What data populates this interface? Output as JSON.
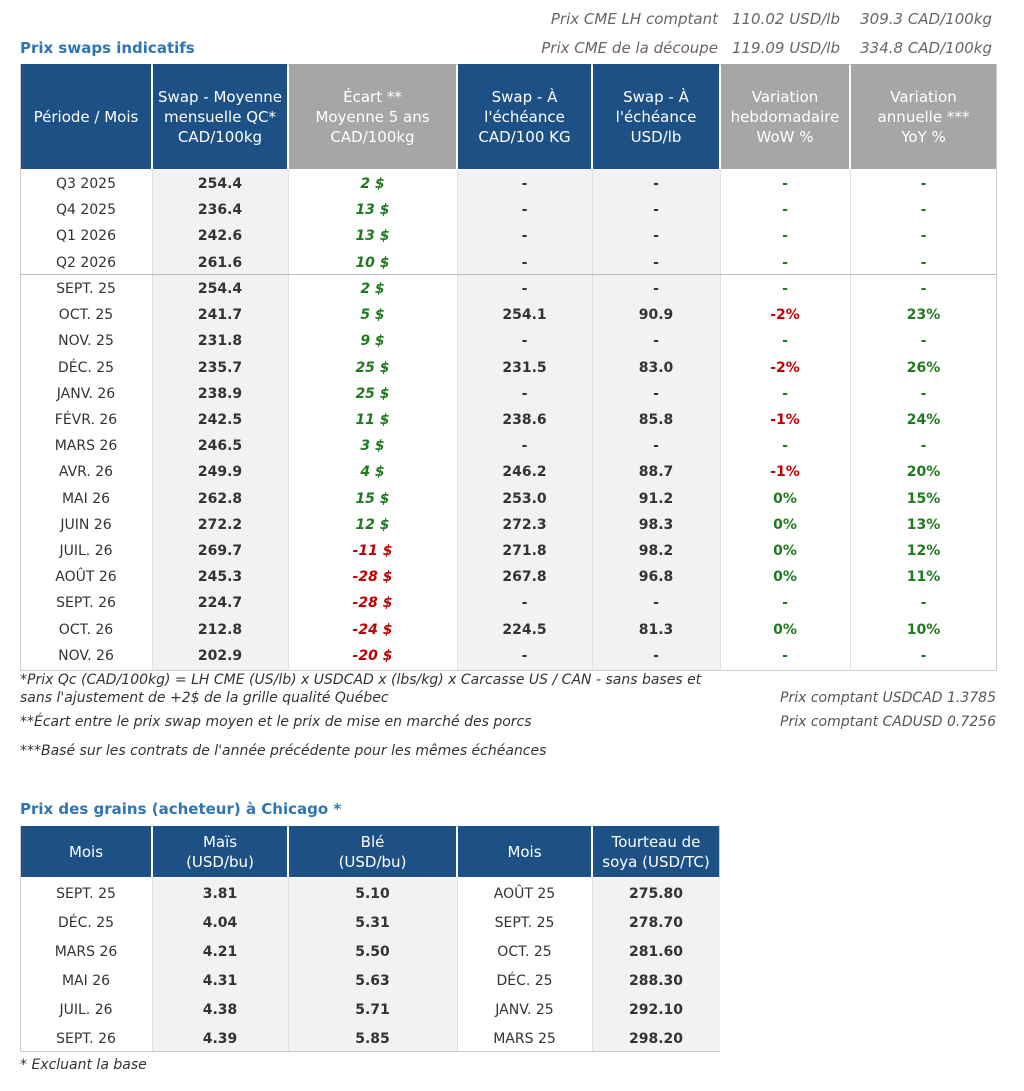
{
  "spot_prices": [
    {
      "label": "Prix CME LH comptant",
      "usd": "110.02 USD/lb",
      "cad": "309.3 CAD/100kg"
    },
    {
      "label": "Prix CME de la découpe",
      "usd": "119.09 USD/lb",
      "cad": "334.8 CAD/100kg"
    }
  ],
  "swaps": {
    "title": "Prix swaps indicatifs",
    "headers": [
      [
        "Période / Mois"
      ],
      [
        "Swap - Moyenne",
        "mensuelle QC*",
        "CAD/100kg"
      ],
      [
        "Écart **",
        "Moyenne 5 ans",
        "CAD/100kg"
      ],
      [
        "Swap - À",
        "l'échéance",
        "CAD/100 KG"
      ],
      [
        "Swap - À",
        "l'échéance",
        "USD/lb"
      ],
      [
        "Variation",
        "hebdomadaire",
        "WoW %"
      ],
      [
        "Variation",
        "annuelle ***",
        "YoY %"
      ]
    ],
    "quarters": [
      [
        "Q3 2025",
        "254.4",
        "2 $",
        "-",
        "-",
        "-",
        "-"
      ],
      [
        "Q4 2025",
        "236.4",
        "13 $",
        "-",
        "-",
        "-",
        "-"
      ],
      [
        "Q1 2026",
        "242.6",
        "13 $",
        "-",
        "-",
        "-",
        "-"
      ],
      [
        "Q2 2026",
        "261.6",
        "10 $",
        "-",
        "-",
        "-",
        "-"
      ]
    ],
    "months": [
      [
        "SEPT. 25",
        "254.4",
        "2 $",
        "-",
        "-",
        "-",
        "-"
      ],
      [
        "OCT. 25",
        "241.7",
        "5 $",
        "254.1",
        "90.9",
        "-2%",
        "23%"
      ],
      [
        "NOV. 25",
        "231.8",
        "9 $",
        "-",
        "-",
        "-",
        "-"
      ],
      [
        "DÉC. 25",
        "235.7",
        "25 $",
        "231.5",
        "83.0",
        "-2%",
        "26%"
      ],
      [
        "JANV. 26",
        "238.9",
        "25 $",
        "-",
        "-",
        "-",
        "-"
      ],
      [
        "FÉVR. 26",
        "242.5",
        "11 $",
        "238.6",
        "85.8",
        "-1%",
        "24%"
      ],
      [
        "MARS 26",
        "246.5",
        "3 $",
        "-",
        "-",
        "-",
        "-"
      ],
      [
        "AVR. 26",
        "249.9",
        "4 $",
        "246.2",
        "88.7",
        "-1%",
        "20%"
      ],
      [
        "MAI 26",
        "262.8",
        "15 $",
        "253.0",
        "91.2",
        "0%",
        "15%"
      ],
      [
        "JUIN 26",
        "272.2",
        "12 $",
        "272.3",
        "98.3",
        "0%",
        "13%"
      ],
      [
        "JUIL. 26",
        "269.7",
        "-11 $",
        "271.8",
        "98.2",
        "0%",
        "12%"
      ],
      [
        "AOÛT 26",
        "245.3",
        "-28 $",
        "267.8",
        "96.8",
        "0%",
        "11%"
      ],
      [
        "SEPT. 26",
        "224.7",
        "-28 $",
        "-",
        "-",
        "-",
        "-"
      ],
      [
        "OCT. 26",
        "212.8",
        "-24 $",
        "224.5",
        "81.3",
        "0%",
        "10%"
      ],
      [
        "NOV. 26",
        "202.9",
        "-20 $",
        "-",
        "-",
        "-",
        "-"
      ]
    ],
    "notes": [
      [
        "*Prix Qc (CAD/100kg) = LH CME (US/lb) x USDCAD x (lbs/kg) x Carcasse US / CAN - sans bases et",
        "sans l'ajustement de +2$ de la grille qualité Québec"
      ],
      [
        "**Écart entre le prix swap moyen et le prix de mise en marché des porcs"
      ],
      [
        "***Basé sur les contrats de l'année précédente pour les mêmes échéances"
      ]
    ],
    "spot_fx": [
      "Prix comptant USDCAD 1.3785",
      "Prix comptant CADUSD 0.7256"
    ]
  },
  "grains": {
    "title": "Prix des grains (acheteur) à Chicago *",
    "headers": [
      [
        "Mois"
      ],
      [
        "Maïs",
        "(USD/bu)"
      ],
      [
        "Blé",
        "(USD/bu)"
      ],
      [
        "Mois"
      ],
      [
        "Tourteau de",
        "soya (USD/TC)"
      ]
    ],
    "rows": [
      [
        "SEPT. 25",
        "3.81",
        "5.10",
        "AOÛT 25",
        "275.80"
      ],
      [
        "DÉC. 25",
        "4.04",
        "5.31",
        "SEPT. 25",
        "278.70"
      ],
      [
        "MARS 26",
        "4.21",
        "5.50",
        "OCT. 25",
        "281.60"
      ],
      [
        "MAI 26",
        "4.31",
        "5.63",
        "DÉC. 25",
        "288.30"
      ],
      [
        "JUIL. 26",
        "4.38",
        "5.71",
        "JANV. 25",
        "292.10"
      ],
      [
        "SEPT. 26",
        "4.39",
        "5.85",
        "MARS 25",
        "298.20"
      ]
    ],
    "note": "* Excluant la base"
  }
}
